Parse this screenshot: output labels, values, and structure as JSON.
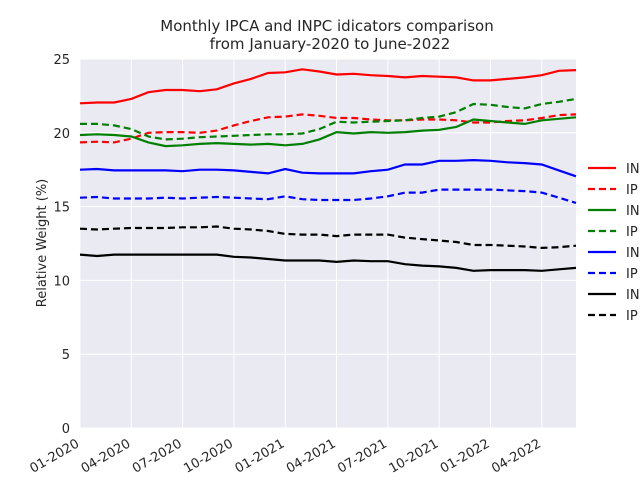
{
  "chart_data": {
    "type": "line",
    "title": "Monthly IPCA and INPC idicators comparison",
    "subtitle": "from January-2020 to June-2022",
    "xlabel": "",
    "ylabel": "Relative Weight (%)",
    "ylim": [
      0,
      25
    ],
    "yticks": [
      "0",
      "5",
      "10",
      "15",
      "20",
      "25"
    ],
    "x": [
      "01-2020",
      "02-2020",
      "03-2020",
      "04-2020",
      "05-2020",
      "06-2020",
      "07-2020",
      "08-2020",
      "09-2020",
      "10-2020",
      "11-2020",
      "12-2020",
      "01-2021",
      "02-2021",
      "03-2021",
      "04-2021",
      "05-2021",
      "06-2021",
      "07-2021",
      "08-2021",
      "09-2021",
      "10-2021",
      "11-2021",
      "12-2021",
      "01-2022",
      "02-2022",
      "03-2022",
      "04-2022",
      "05-2022",
      "06-2022"
    ],
    "xticks": [
      "01-2020",
      "04-2020",
      "07-2020",
      "10-2020",
      "01-2021",
      "04-2021",
      "07-2021",
      "10-2021",
      "01-2022",
      "04-2022"
    ],
    "grid": true,
    "background": "#eaeaf2",
    "legend_position": "right",
    "series": [
      {
        "name": "IN",
        "color": "#ff0000",
        "dash": "solid",
        "values": [
          22.0,
          22.05,
          22.05,
          22.3,
          22.75,
          22.9,
          22.9,
          22.82,
          22.95,
          23.35,
          23.65,
          24.05,
          24.1,
          24.3,
          24.15,
          23.95,
          24.0,
          23.9,
          23.85,
          23.75,
          23.85,
          23.8,
          23.75,
          23.55,
          23.55,
          23.65,
          23.75,
          23.9,
          24.2,
          24.25
        ]
      },
      {
        "name": "IP",
        "color": "#ff0000",
        "dash": "dashed",
        "values": [
          19.35,
          19.4,
          19.35,
          19.6,
          20.0,
          20.05,
          20.05,
          20.0,
          20.15,
          20.5,
          20.8,
          21.05,
          21.1,
          21.25,
          21.15,
          21.0,
          21.0,
          20.9,
          20.85,
          20.85,
          20.9,
          20.9,
          20.85,
          20.7,
          20.7,
          20.8,
          20.85,
          21.0,
          21.2,
          21.25
        ]
      },
      {
        "name": "IN",
        "color": "#008000",
        "dash": "solid",
        "values": [
          19.85,
          19.9,
          19.85,
          19.75,
          19.35,
          19.1,
          19.15,
          19.25,
          19.3,
          19.25,
          19.2,
          19.25,
          19.15,
          19.25,
          19.55,
          20.05,
          19.95,
          20.05,
          20.0,
          20.05,
          20.15,
          20.2,
          20.4,
          20.9,
          20.8,
          20.7,
          20.6,
          20.85,
          20.95,
          21.05
        ]
      },
      {
        "name": "IP",
        "color": "#008000",
        "dash": "dashed",
        "values": [
          20.6,
          20.6,
          20.5,
          20.25,
          19.75,
          19.55,
          19.6,
          19.7,
          19.75,
          19.8,
          19.85,
          19.9,
          19.9,
          19.95,
          20.25,
          20.75,
          20.7,
          20.75,
          20.8,
          20.85,
          21.0,
          21.1,
          21.4,
          21.95,
          21.9,
          21.75,
          21.65,
          21.95,
          22.1,
          22.3
        ]
      },
      {
        "name": "IN",
        "color": "#0000ff",
        "dash": "solid",
        "values": [
          17.5,
          17.55,
          17.45,
          17.45,
          17.45,
          17.45,
          17.4,
          17.5,
          17.5,
          17.45,
          17.35,
          17.25,
          17.55,
          17.3,
          17.25,
          17.25,
          17.25,
          17.4,
          17.5,
          17.85,
          17.85,
          18.1,
          18.1,
          18.15,
          18.1,
          18.0,
          17.95,
          17.85,
          17.45,
          17.05
        ]
      },
      {
        "name": "IP",
        "color": "#0000ff",
        "dash": "dashed",
        "values": [
          15.6,
          15.65,
          15.55,
          15.55,
          15.55,
          15.6,
          15.55,
          15.6,
          15.65,
          15.6,
          15.55,
          15.5,
          15.7,
          15.5,
          15.45,
          15.45,
          15.45,
          15.55,
          15.7,
          15.95,
          15.95,
          16.15,
          16.15,
          16.15,
          16.15,
          16.1,
          16.05,
          15.95,
          15.6,
          15.25
        ]
      },
      {
        "name": "IN",
        "color": "#000000",
        "dash": "solid",
        "values": [
          11.75,
          11.65,
          11.75,
          11.75,
          11.75,
          11.75,
          11.75,
          11.75,
          11.75,
          11.6,
          11.55,
          11.45,
          11.35,
          11.35,
          11.35,
          11.25,
          11.35,
          11.3,
          11.3,
          11.1,
          11.0,
          10.95,
          10.85,
          10.65,
          10.7,
          10.7,
          10.7,
          10.65,
          10.75,
          10.85
        ]
      },
      {
        "name": "IP",
        "color": "#000000",
        "dash": "dashed",
        "values": [
          13.5,
          13.45,
          13.5,
          13.55,
          13.55,
          13.55,
          13.6,
          13.6,
          13.65,
          13.5,
          13.45,
          13.35,
          13.15,
          13.1,
          13.1,
          13.0,
          13.1,
          13.1,
          13.1,
          12.9,
          12.8,
          12.7,
          12.6,
          12.4,
          12.4,
          12.35,
          12.3,
          12.2,
          12.25,
          12.35
        ]
      }
    ]
  }
}
